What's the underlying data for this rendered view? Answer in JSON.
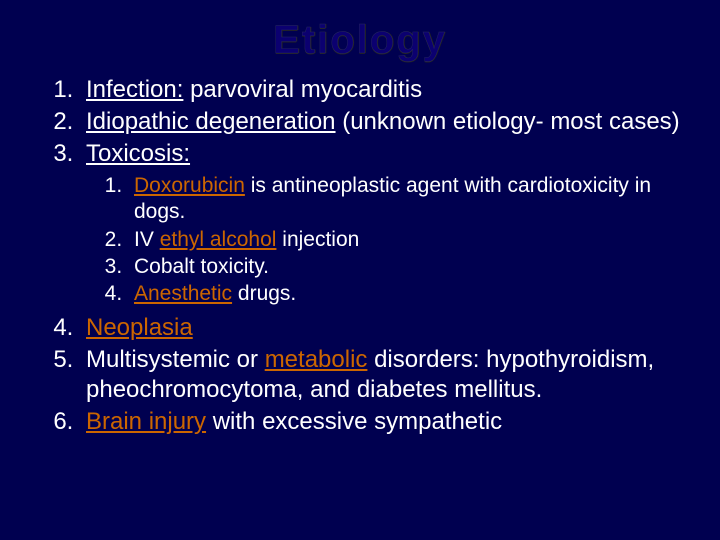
{
  "slide": {
    "title": "Etiology",
    "background_color": "#000050",
    "title_color": "#0b0070",
    "title_fontsize": 40,
    "body_color": "#ffffff",
    "highlight_color": "#cc6600",
    "body_fontsize_main": 24,
    "body_fontsize_sub": 21
  },
  "items": {
    "i1_label": "Infection:",
    "i1_rest": " parvoviral myocarditis",
    "i2_label": "Idiopathic degeneration",
    "i2_rest": " (unknown etiology- most cases)",
    "i3_label": "Toxicosis:",
    "i3_sub": {
      "s1_a": "Doxorubicin",
      "s1_b": " is antineoplastic agent with cardiotoxicity in dogs.",
      "s2_a": "IV ",
      "s2_b": "ethyl alcohol",
      "s2_c": " injection",
      "s3": "Cobalt toxicity.",
      "s4_a": "Anesthetic",
      "s4_b": " drugs."
    },
    "i4_label": "Neoplasia",
    "i5_a": "Multisystemic or ",
    "i5_b": "metabolic",
    "i5_c": " disorders: hypothyroidism, pheochromocytoma, and diabetes mellitus.",
    "i6_a": "Brain injury",
    "i6_b": " with excessive sympathetic"
  }
}
